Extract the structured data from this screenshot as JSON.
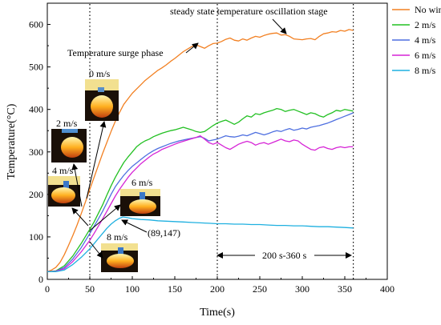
{
  "chart_data": {
    "type": "line",
    "xlabel": "Time(s)",
    "ylabel": "Temperature(°C)",
    "xlim": [
      0,
      400
    ],
    "ylim": [
      0,
      650
    ],
    "xticks": [
      0,
      50,
      100,
      150,
      200,
      250,
      300,
      350,
      400
    ],
    "yticks": [
      0,
      100,
      200,
      300,
      400,
      500,
      600
    ],
    "grid": false,
    "legend_position": "top-right",
    "colors": {
      "no_wind": "#f28022",
      "ws2": "#22c022",
      "ws4": "#4e6fe0",
      "ws6": "#d624d6",
      "ws8": "#1fb0e0"
    },
    "series": [
      {
        "name": "No wind",
        "color": "#f28022",
        "points": [
          [
            0,
            18
          ],
          [
            5,
            22
          ],
          [
            10,
            28
          ],
          [
            15,
            40
          ],
          [
            20,
            58
          ],
          [
            25,
            80
          ],
          [
            30,
            103
          ],
          [
            35,
            128
          ],
          [
            40,
            155
          ],
          [
            45,
            183
          ],
          [
            50,
            212
          ],
          [
            55,
            240
          ],
          [
            60,
            268
          ],
          [
            65,
            296
          ],
          [
            70,
            322
          ],
          [
            75,
            348
          ],
          [
            80,
            372
          ],
          [
            85,
            393
          ],
          [
            90,
            412
          ],
          [
            95,
            425
          ],
          [
            100,
            438
          ],
          [
            105,
            448
          ],
          [
            110,
            458
          ],
          [
            115,
            468
          ],
          [
            120,
            476
          ],
          [
            125,
            484
          ],
          [
            130,
            492
          ],
          [
            135,
            498
          ],
          [
            140,
            505
          ],
          [
            145,
            513
          ],
          [
            150,
            520
          ],
          [
            155,
            528
          ],
          [
            160,
            536
          ],
          [
            165,
            542
          ],
          [
            170,
            548
          ],
          [
            175,
            552
          ],
          [
            180,
            548
          ],
          [
            185,
            544
          ],
          [
            190,
            550
          ],
          [
            195,
            555
          ],
          [
            200,
            556
          ],
          [
            205,
            560
          ],
          [
            210,
            565
          ],
          [
            215,
            568
          ],
          [
            220,
            563
          ],
          [
            225,
            561
          ],
          [
            230,
            566
          ],
          [
            235,
            563
          ],
          [
            240,
            568
          ],
          [
            245,
            572
          ],
          [
            250,
            570
          ],
          [
            255,
            574
          ],
          [
            260,
            577
          ],
          [
            265,
            579
          ],
          [
            270,
            580
          ],
          [
            275,
            575
          ],
          [
            280,
            576
          ],
          [
            285,
            572
          ],
          [
            290,
            566
          ],
          [
            295,
            565
          ],
          [
            300,
            564
          ],
          [
            305,
            566
          ],
          [
            310,
            567
          ],
          [
            315,
            564
          ],
          [
            320,
            572
          ],
          [
            325,
            578
          ],
          [
            330,
            580
          ],
          [
            335,
            583
          ],
          [
            340,
            582
          ],
          [
            345,
            586
          ],
          [
            350,
            584
          ],
          [
            355,
            588
          ],
          [
            360,
            586
          ]
        ]
      },
      {
        "name": "2 m/s",
        "color": "#22c022",
        "points": [
          [
            0,
            18
          ],
          [
            10,
            20
          ],
          [
            20,
            32
          ],
          [
            30,
            55
          ],
          [
            40,
            85
          ],
          [
            50,
            118
          ],
          [
            55,
            135
          ],
          [
            60,
            155
          ],
          [
            65,
            175
          ],
          [
            70,
            198
          ],
          [
            75,
            220
          ],
          [
            80,
            240
          ],
          [
            85,
            258
          ],
          [
            90,
            275
          ],
          [
            95,
            288
          ],
          [
            100,
            300
          ],
          [
            105,
            312
          ],
          [
            110,
            320
          ],
          [
            115,
            326
          ],
          [
            120,
            330
          ],
          [
            125,
            336
          ],
          [
            130,
            340
          ],
          [
            135,
            344
          ],
          [
            140,
            347
          ],
          [
            145,
            350
          ],
          [
            150,
            352
          ],
          [
            155,
            355
          ],
          [
            160,
            358
          ],
          [
            165,
            355
          ],
          [
            170,
            352
          ],
          [
            175,
            348
          ],
          [
            180,
            346
          ],
          [
            185,
            348
          ],
          [
            190,
            355
          ],
          [
            195,
            362
          ],
          [
            200,
            368
          ],
          [
            205,
            372
          ],
          [
            210,
            375
          ],
          [
            215,
            370
          ],
          [
            220,
            365
          ],
          [
            225,
            370
          ],
          [
            230,
            378
          ],
          [
            235,
            385
          ],
          [
            240,
            382
          ],
          [
            245,
            390
          ],
          [
            250,
            388
          ],
          [
            255,
            392
          ],
          [
            260,
            395
          ],
          [
            265,
            398
          ],
          [
            270,
            402
          ],
          [
            275,
            400
          ],
          [
            280,
            395
          ],
          [
            285,
            398
          ],
          [
            290,
            400
          ],
          [
            295,
            396
          ],
          [
            300,
            392
          ],
          [
            305,
            388
          ],
          [
            310,
            392
          ],
          [
            315,
            390
          ],
          [
            320,
            385
          ],
          [
            325,
            382
          ],
          [
            330,
            388
          ],
          [
            335,
            392
          ],
          [
            340,
            398
          ],
          [
            345,
            396
          ],
          [
            350,
            400
          ],
          [
            355,
            398
          ],
          [
            360,
            396
          ]
        ]
      },
      {
        "name": "4 m/s",
        "color": "#4e6fe0",
        "points": [
          [
            0,
            18
          ],
          [
            10,
            19
          ],
          [
            20,
            28
          ],
          [
            30,
            48
          ],
          [
            40,
            75
          ],
          [
            50,
            108
          ],
          [
            55,
            125
          ],
          [
            60,
            142
          ],
          [
            65,
            160
          ],
          [
            70,
            180
          ],
          [
            75,
            200
          ],
          [
            80,
            218
          ],
          [
            85,
            232
          ],
          [
            90,
            245
          ],
          [
            95,
            256
          ],
          [
            100,
            266
          ],
          [
            105,
            274
          ],
          [
            110,
            282
          ],
          [
            115,
            290
          ],
          [
            120,
            297
          ],
          [
            125,
            303
          ],
          [
            130,
            308
          ],
          [
            135,
            312
          ],
          [
            140,
            316
          ],
          [
            145,
            320
          ],
          [
            150,
            323
          ],
          [
            155,
            326
          ],
          [
            160,
            328
          ],
          [
            165,
            330
          ],
          [
            170,
            332
          ],
          [
            175,
            334
          ],
          [
            180,
            336
          ],
          [
            185,
            332
          ],
          [
            190,
            326
          ],
          [
            195,
            328
          ],
          [
            200,
            330
          ],
          [
            205,
            334
          ],
          [
            210,
            338
          ],
          [
            215,
            336
          ],
          [
            220,
            335
          ],
          [
            225,
            337
          ],
          [
            230,
            340
          ],
          [
            235,
            338
          ],
          [
            240,
            342
          ],
          [
            245,
            346
          ],
          [
            250,
            343
          ],
          [
            255,
            340
          ],
          [
            260,
            343
          ],
          [
            265,
            347
          ],
          [
            270,
            350
          ],
          [
            275,
            348
          ],
          [
            280,
            352
          ],
          [
            285,
            355
          ],
          [
            290,
            351
          ],
          [
            295,
            353
          ],
          [
            300,
            356
          ],
          [
            305,
            354
          ],
          [
            310,
            358
          ],
          [
            315,
            360
          ],
          [
            320,
            362
          ],
          [
            325,
            365
          ],
          [
            330,
            368
          ],
          [
            335,
            372
          ],
          [
            340,
            376
          ],
          [
            345,
            380
          ],
          [
            350,
            384
          ],
          [
            355,
            388
          ],
          [
            360,
            392
          ]
        ]
      },
      {
        "name": "6 m/s",
        "color": "#d624d6",
        "points": [
          [
            0,
            18
          ],
          [
            10,
            19
          ],
          [
            20,
            25
          ],
          [
            30,
            42
          ],
          [
            40,
            65
          ],
          [
            50,
            92
          ],
          [
            55,
            108
          ],
          [
            60,
            125
          ],
          [
            65,
            142
          ],
          [
            70,
            160
          ],
          [
            75,
            178
          ],
          [
            80,
            196
          ],
          [
            85,
            212
          ],
          [
            90,
            226
          ],
          [
            95,
            240
          ],
          [
            100,
            252
          ],
          [
            105,
            262
          ],
          [
            110,
            272
          ],
          [
            115,
            280
          ],
          [
            120,
            288
          ],
          [
            125,
            295
          ],
          [
            130,
            300
          ],
          [
            135,
            306
          ],
          [
            140,
            310
          ],
          [
            145,
            314
          ],
          [
            150,
            318
          ],
          [
            155,
            322
          ],
          [
            160,
            325
          ],
          [
            165,
            328
          ],
          [
            170,
            331
          ],
          [
            175,
            334
          ],
          [
            180,
            338
          ],
          [
            185,
            330
          ],
          [
            190,
            322
          ],
          [
            195,
            318
          ],
          [
            200,
            322
          ],
          [
            205,
            316
          ],
          [
            210,
            310
          ],
          [
            215,
            306
          ],
          [
            220,
            312
          ],
          [
            225,
            318
          ],
          [
            230,
            322
          ],
          [
            235,
            325
          ],
          [
            240,
            322
          ],
          [
            245,
            316
          ],
          [
            250,
            320
          ],
          [
            255,
            322
          ],
          [
            260,
            318
          ],
          [
            265,
            322
          ],
          [
            270,
            326
          ],
          [
            275,
            330
          ],
          [
            280,
            326
          ],
          [
            285,
            324
          ],
          [
            290,
            328
          ],
          [
            295,
            326
          ],
          [
            300,
            318
          ],
          [
            305,
            312
          ],
          [
            310,
            306
          ],
          [
            315,
            304
          ],
          [
            320,
            310
          ],
          [
            325,
            312
          ],
          [
            330,
            308
          ],
          [
            335,
            306
          ],
          [
            340,
            310
          ],
          [
            345,
            312
          ],
          [
            350,
            310
          ],
          [
            355,
            312
          ],
          [
            360,
            312
          ]
        ]
      },
      {
        "name": "8 m/s",
        "color": "#1fb0e0",
        "points": [
          [
            0,
            18
          ],
          [
            10,
            18
          ],
          [
            20,
            22
          ],
          [
            30,
            35
          ],
          [
            40,
            52
          ],
          [
            50,
            72
          ],
          [
            55,
            84
          ],
          [
            60,
            96
          ],
          [
            65,
            108
          ],
          [
            70,
            120
          ],
          [
            75,
            130
          ],
          [
            80,
            138
          ],
          [
            85,
            144
          ],
          [
            89,
            147
          ],
          [
            95,
            145
          ],
          [
            100,
            143
          ],
          [
            110,
            141
          ],
          [
            120,
            140
          ],
          [
            130,
            138
          ],
          [
            140,
            137
          ],
          [
            150,
            136
          ],
          [
            160,
            135
          ],
          [
            170,
            134
          ],
          [
            180,
            133
          ],
          [
            190,
            132
          ],
          [
            200,
            131
          ],
          [
            210,
            131
          ],
          [
            220,
            130
          ],
          [
            230,
            130
          ],
          [
            240,
            129
          ],
          [
            250,
            129
          ],
          [
            260,
            128
          ],
          [
            270,
            127
          ],
          [
            280,
            127
          ],
          [
            290,
            126
          ],
          [
            300,
            126
          ],
          [
            310,
            125
          ],
          [
            320,
            124
          ],
          [
            330,
            124
          ],
          [
            340,
            123
          ],
          [
            350,
            122
          ],
          [
            360,
            121
          ]
        ]
      }
    ],
    "annotations": {
      "steady_stage": "steady state temperature oscillation stage",
      "surge_phase": "Temperature surge phase",
      "peak_point": "(89,147)",
      "range_label": "200 s-360 s"
    },
    "inset_labels": [
      "0 m/s",
      "2 m/s",
      "4 m/s",
      "6 m/s",
      "8 m/s"
    ],
    "vertical_markers_x": [
      50,
      200,
      360
    ]
  }
}
